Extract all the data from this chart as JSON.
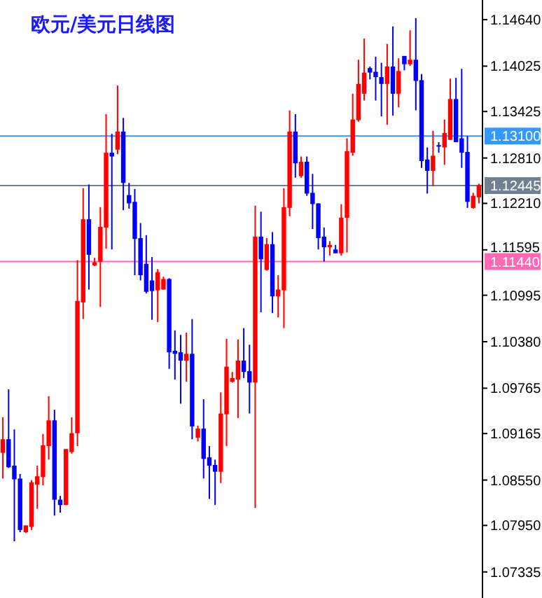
{
  "chart_data": {
    "type": "candlestick",
    "title": "欧元/美元日线图",
    "categories": [
      null,
      null,
      null,
      null,
      null,
      null,
      null,
      null,
      null,
      null,
      null,
      null,
      null,
      null,
      null,
      null,
      null,
      null,
      null,
      null,
      null,
      null,
      null,
      null,
      null,
      null,
      null,
      null,
      null,
      null,
      null,
      null,
      null,
      null,
      null,
      null,
      null,
      null,
      null,
      null,
      null,
      null,
      null,
      null,
      null,
      null,
      null,
      null,
      null,
      null,
      null,
      null,
      null,
      null,
      null,
      null,
      null,
      null,
      null,
      null,
      null,
      null,
      null,
      null,
      null,
      null,
      null,
      null,
      null,
      null,
      null,
      null,
      null,
      null,
      null,
      null,
      null,
      null,
      null,
      null,
      null,
      null,
      null,
      null
    ],
    "ohlc": [
      [
        1.0891,
        1.0938,
        1.0857,
        1.0909
      ],
      [
        1.0909,
        1.0975,
        1.0871,
        1.0872
      ],
      [
        1.0874,
        1.0922,
        1.0774,
        1.0856
      ],
      [
        1.0857,
        1.0863,
        1.0786,
        1.0789
      ],
      [
        1.0786,
        1.0795,
        1.0785,
        1.0795
      ],
      [
        1.0793,
        1.0855,
        1.0789,
        1.0852
      ],
      [
        1.0849,
        1.0874,
        1.0817,
        1.086
      ],
      [
        1.0859,
        1.0916,
        1.0848,
        1.0901
      ],
      [
        1.09,
        1.0966,
        1.0882,
        1.0934
      ],
      [
        1.0934,
        1.0948,
        1.0808,
        1.0829
      ],
      [
        1.0829,
        1.0834,
        1.0812,
        1.0822
      ],
      [
        1.0822,
        1.0896,
        1.0822,
        1.0896
      ],
      [
        1.0892,
        1.0938,
        1.089,
        1.0917
      ],
      [
        1.0917,
        1.1146,
        1.09,
        1.1092
      ],
      [
        1.109,
        1.1241,
        1.1068,
        1.12
      ],
      [
        1.12,
        1.1246,
        1.1107,
        1.1153
      ],
      [
        1.1139,
        1.1149,
        1.1138,
        1.1143
      ],
      [
        1.1144,
        1.1216,
        1.1084,
        1.119
      ],
      [
        1.1189,
        1.1339,
        1.1161,
        1.1288
      ],
      [
        1.1288,
        1.1313,
        1.116,
        1.1283
      ],
      [
        1.1292,
        1.1377,
        1.1286,
        1.1316
      ],
      [
        1.1316,
        1.1334,
        1.1212,
        1.1248
      ],
      [
        1.1232,
        1.1248,
        1.1214,
        1.1221
      ],
      [
        1.1223,
        1.124,
        1.1126,
        1.1174
      ],
      [
        1.1175,
        1.1195,
        1.1119,
        1.1126
      ],
      [
        1.1141,
        1.1179,
        1.1102,
        1.1104
      ],
      [
        1.1119,
        1.115,
        1.1067,
        1.1105
      ],
      [
        1.1106,
        1.1134,
        1.1064,
        1.113
      ],
      [
        1.1107,
        1.1124,
        1.1107,
        1.1121
      ],
      [
        1.1121,
        1.1122,
        1.1002,
        1.1024
      ],
      [
        1.1026,
        1.1053,
        1.0988,
        1.1022
      ],
      [
        1.1024,
        1.1047,
        1.0956,
        1.1013
      ],
      [
        1.1013,
        1.105,
        1.0985,
        1.1022
      ],
      [
        1.1022,
        1.1068,
        1.0909,
        1.0926
      ],
      [
        1.0911,
        1.0927,
        1.0906,
        1.0923
      ],
      [
        1.0923,
        1.0962,
        1.0857,
        1.0883
      ],
      [
        1.0885,
        1.09,
        1.083,
        1.0874
      ],
      [
        1.0875,
        1.0882,
        1.0822,
        1.0866
      ],
      [
        1.0866,
        1.0971,
        1.0851,
        1.0943
      ],
      [
        1.0942,
        1.1042,
        1.09,
        1.1005
      ],
      [
        1.0985,
        1.0998,
        1.0984,
        1.099
      ],
      [
        1.0988,
        1.1041,
        1.0937,
        1.1013
      ],
      [
        1.1013,
        1.1056,
        1.099,
        1.0998
      ],
      [
        1.0999,
        1.1034,
        1.0943,
        1.0984
      ],
      [
        1.0984,
        1.1218,
        1.0818,
        1.1177
      ],
      [
        1.1177,
        1.121,
        1.1077,
        1.1147
      ],
      [
        1.1133,
        1.1175,
        1.1132,
        1.1167
      ],
      [
        1.1167,
        1.1183,
        1.1076,
        1.1098
      ],
      [
        1.1098,
        1.1126,
        1.107,
        1.1107
      ],
      [
        1.1106,
        1.1241,
        1.1056,
        1.1216
      ],
      [
        1.1215,
        1.1344,
        1.1204,
        1.1316
      ],
      [
        1.1316,
        1.1339,
        1.1255,
        1.1274
      ],
      [
        1.1257,
        1.1283,
        1.1255,
        1.1276
      ],
      [
        1.1276,
        1.1283,
        1.1231,
        1.1234
      ],
      [
        1.1235,
        1.126,
        1.1187,
        1.122
      ],
      [
        1.1221,
        1.1221,
        1.116,
        1.1175
      ],
      [
        1.1177,
        1.1189,
        1.1144,
        1.1163
      ],
      [
        1.1163,
        1.1171,
        1.1152,
        1.1166
      ],
      [
        1.116,
        1.1166,
        1.1155,
        1.1155
      ],
      [
        1.1155,
        1.122,
        1.1152,
        1.1202
      ],
      [
        1.1202,
        1.1307,
        1.1156,
        1.129
      ],
      [
        1.1288,
        1.1366,
        1.1284,
        1.1332
      ],
      [
        1.1331,
        1.1411,
        1.1329,
        1.1379
      ],
      [
        1.1366,
        1.1439,
        1.1357,
        1.1394
      ],
      [
        1.14,
        1.1402,
        1.1385,
        1.1394
      ],
      [
        1.1395,
        1.1415,
        1.1357,
        1.1388
      ],
      [
        1.1388,
        1.1407,
        1.1336,
        1.1379
      ],
      [
        1.1379,
        1.1432,
        1.1325,
        1.1402
      ],
      [
        1.1402,
        1.1455,
        1.1337,
        1.1366
      ],
      [
        1.1366,
        1.1413,
        1.1348,
        1.1396
      ],
      [
        1.1416,
        1.1416,
        1.1397,
        1.1405
      ],
      [
        1.1405,
        1.145,
        1.1403,
        1.1411
      ],
      [
        1.1411,
        1.1466,
        1.1344,
        1.1383
      ],
      [
        1.1384,
        1.1392,
        1.1268,
        1.1277
      ],
      [
        1.1279,
        1.1295,
        1.1234,
        1.1264
      ],
      [
        1.1264,
        1.1317,
        1.1244,
        1.1284
      ],
      [
        1.1298,
        1.1302,
        1.1288,
        1.1297
      ],
      [
        1.1295,
        1.1332,
        1.1272,
        1.1314
      ],
      [
        1.1305,
        1.1386,
        1.1305,
        1.1359
      ],
      [
        1.1359,
        1.1387,
        1.1302,
        1.1302
      ],
      [
        1.1307,
        1.1399,
        1.1268,
        1.1288
      ],
      [
        1.1289,
        1.131,
        1.1215,
        1.1223
      ],
      [
        1.1215,
        1.1235,
        1.1214,
        1.1231
      ],
      [
        1.1229,
        1.1247,
        1.1221,
        1.1245
      ]
    ],
    "colors": [
      "#ff0000",
      "#0000ff",
      "#0000ff",
      "#0000ff",
      "#ff0000",
      "#ff0000",
      "#ff0000",
      "#ff0000",
      "#ff0000",
      "#0000ff",
      "#0000ff",
      "#ff0000",
      "#ff0000",
      "#ff0000",
      "#ff0000",
      "#0000ff",
      "#ff0000",
      "#ff0000",
      "#ff0000",
      "#0000ff",
      "#ff0000",
      "#0000ff",
      "#0000ff",
      "#0000ff",
      "#0000ff",
      "#0000ff",
      "#0000ff",
      "#ff0000",
      "#ff0000",
      "#0000ff",
      "#0000ff",
      "#0000ff",
      "#ff0000",
      "#0000ff",
      "#ff0000",
      "#0000ff",
      "#0000ff",
      "#0000ff",
      "#ff0000",
      "#ff0000",
      "#ff0000",
      "#ff0000",
      "#0000ff",
      "#0000ff",
      "#ff0000",
      "#0000ff",
      "#ff0000",
      "#0000ff",
      "#ff0000",
      "#ff0000",
      "#ff0000",
      "#0000ff",
      "#ff0000",
      "#0000ff",
      "#0000ff",
      "#0000ff",
      "#0000ff",
      "#ff0000",
      "#0000ff",
      "#ff0000",
      "#ff0000",
      "#ff0000",
      "#ff0000",
      "#ff0000",
      "#0000ff",
      "#0000ff",
      "#0000ff",
      "#ff0000",
      "#0000ff",
      "#ff0000",
      "#0000ff",
      "#ff0000",
      "#0000ff",
      "#0000ff",
      "#0000ff",
      "#ff0000",
      "#0000ff",
      "#ff0000",
      "#ff0000",
      "#0000ff",
      "#0000ff",
      "#0000ff",
      "#ff0000",
      "#ff0000"
    ],
    "ylim": [
      1.0699,
      1.149
    ],
    "yticks": [
      {
        "value": 1.1464,
        "label": "1.14640"
      },
      {
        "value": 1.14025,
        "label": "1.14025"
      },
      {
        "value": 1.13425,
        "label": "1.13425"
      },
      {
        "value": 1.1281,
        "label": "1.12810"
      },
      {
        "value": 1.1221,
        "label": "1.12210"
      },
      {
        "value": 1.11595,
        "label": "1.11595"
      },
      {
        "value": 1.10995,
        "label": "1.10995"
      },
      {
        "value": 1.1038,
        "label": "1.10380"
      },
      {
        "value": 1.09765,
        "label": "1.09765"
      },
      {
        "value": 1.09165,
        "label": "1.09165"
      },
      {
        "value": 1.0855,
        "label": "1.08550"
      },
      {
        "value": 1.0795,
        "label": "1.07950"
      },
      {
        "value": 1.07335,
        "label": "1.07335"
      }
    ],
    "ref_lines": [
      {
        "axis": "y",
        "value": 1.131,
        "label": "1.13100",
        "color": "#3399ff"
      },
      {
        "axis": "y",
        "value": 1.12445,
        "label": "1.12445",
        "color": "#708090"
      },
      {
        "axis": "y",
        "value": 1.1144,
        "label": "1.11440",
        "color": "#ff69b4"
      }
    ],
    "tick_labels": "y",
    "grid": false
  }
}
